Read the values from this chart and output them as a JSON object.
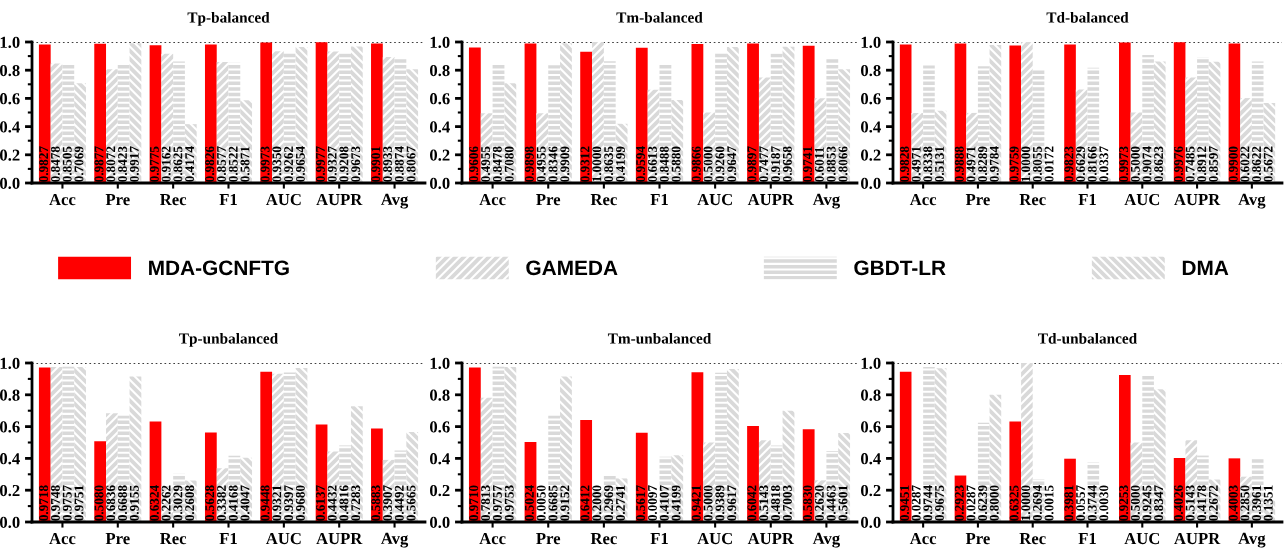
{
  "chart_data": [
    {
      "type": "bar",
      "title": "Tp-balanced",
      "categories": [
        "Acc",
        "Pre",
        "Rec",
        "F1",
        "AUC",
        "AUPR",
        "Avg"
      ],
      "ylim": [
        0,
        1.0
      ],
      "yticks": [
        {
          "value": 0,
          "label": "0.0"
        },
        {
          "value": 0.2,
          "label": "0.2"
        },
        {
          "value": 0.4,
          "label": "0.4"
        },
        {
          "value": 0.6,
          "label": "0.6"
        },
        {
          "value": 0.8,
          "label": "0.8"
        },
        {
          "value": 1.0,
          "label": "1.0"
        }
      ],
      "grid": false,
      "legend": "bottom",
      "ref_lines": [
        {
          "axis": "y",
          "value": 1.0,
          "line_style": "dotted",
          "color": "#000000"
        }
      ],
      "series": [
        {
          "name": "MDA-GCNFTG",
          "color": "#ff0000",
          "values": [
            0.9827,
            0.9877,
            0.9775,
            0.9826,
            0.9973,
            0.9977,
            0.9901
          ],
          "value_labels": [
            "0.9827",
            "0.9877",
            "0.9775",
            "0.9826",
            "0.9973",
            "0.9977",
            "0.9901"
          ]
        },
        {
          "name": "GAMEDA",
          "color": "#d9d9d9",
          "values": [
            0.8478,
            0.8072,
            0.9162,
            0.8577,
            0.935,
            0.9327,
            0.8933
          ],
          "value_labels": [
            "0.8478",
            "0.8072",
            "0.9162",
            "0.8577",
            "0.9350",
            "0.9327",
            "0.8933"
          ]
        },
        {
          "name": "GBDT-LR",
          "color": "#d9d9d9",
          "values": [
            0.8505,
            0.8423,
            0.8625,
            0.8522,
            0.9262,
            0.9208,
            0.8874
          ],
          "value_labels": [
            "0.8505",
            "0.8423",
            "0.8625",
            "0.8522",
            "0.9262",
            "0.9208",
            "0.8874"
          ]
        },
        {
          "name": "DMA",
          "color": "#d9d9d9",
          "values": [
            0.7069,
            0.9917,
            0.4174,
            0.5871,
            0.9654,
            0.9673,
            0.8067
          ],
          "value_labels": [
            "0.7069",
            "0.9917",
            "0.4174",
            "0.5871",
            "0.9654",
            "0.9673",
            "0.8067"
          ]
        }
      ]
    },
    {
      "type": "bar",
      "title": "Tm-balanced",
      "categories": [
        "Acc",
        "Pre",
        "Rec",
        "F1",
        "AUC",
        "AUPR",
        "Avg"
      ],
      "ylim": [
        0,
        1.0
      ],
      "yticks": [
        {
          "value": 0,
          "label": "0.0"
        },
        {
          "value": 0.2,
          "label": "0.2"
        },
        {
          "value": 0.4,
          "label": "0.4"
        },
        {
          "value": 0.6,
          "label": "0.6"
        },
        {
          "value": 0.8,
          "label": "0.8"
        },
        {
          "value": 1.0,
          "label": "1.0"
        }
      ],
      "grid": false,
      "ref_lines": [
        {
          "axis": "y",
          "value": 1.0,
          "line_style": "dotted",
          "color": "#000000"
        }
      ],
      "series": [
        {
          "color": "#ff0000",
          "values": [
            0.9606,
            0.9898,
            0.9312,
            0.9594,
            0.9866,
            0.9897,
            0.9741
          ],
          "value_labels": [
            "0.9606",
            "0.9898",
            "0.9312",
            "0.9594",
            "0.9866",
            "0.9897",
            "0.9741"
          ]
        },
        {
          "color": "#d9d9d9",
          "values": [
            0.4955,
            0.4955,
            1.0,
            0.6613,
            0.5,
            0.7477,
            0.6011
          ],
          "value_labels": [
            "0.4955",
            "0.4955",
            "1.0000",
            "0.6613",
            "0.5000",
            "0.7477",
            "0.6011"
          ]
        },
        {
          "color": "#d9d9d9",
          "values": [
            0.8478,
            0.8346,
            0.8635,
            0.8488,
            0.926,
            0.9187,
            0.8853
          ],
          "value_labels": [
            "0.8478",
            "0.8346",
            "0.8635",
            "0.8488",
            "0.9260",
            "0.9187",
            "0.8853"
          ]
        },
        {
          "color": "#d9d9d9",
          "values": [
            0.708,
            0.9909,
            0.4199,
            0.588,
            0.9647,
            0.9658,
            0.8066
          ],
          "value_labels": [
            "0.7080",
            "0.9909",
            "0.4199",
            "0.5880",
            "0.9647",
            "0.9658",
            "0.8066"
          ]
        }
      ]
    },
    {
      "type": "bar",
      "title": "Td-balanced",
      "categories": [
        "Acc",
        "Pre",
        "Rec",
        "F1",
        "AUC",
        "AUPR",
        "Avg"
      ],
      "ylim": [
        0,
        1.0
      ],
      "yticks": [
        {
          "value": 0,
          "label": "0.0"
        },
        {
          "value": 0.2,
          "label": "0.2"
        },
        {
          "value": 0.4,
          "label": "0.4"
        },
        {
          "value": 0.6,
          "label": "0.6"
        },
        {
          "value": 0.8,
          "label": "0.8"
        },
        {
          "value": 1.0,
          "label": "1.0"
        }
      ],
      "grid": false,
      "ref_lines": [
        {
          "axis": "y",
          "value": 1.0,
          "line_style": "dotted",
          "color": "#000000"
        }
      ],
      "series": [
        {
          "color": "#ff0000",
          "values": [
            0.9828,
            0.9888,
            0.9759,
            0.9823,
            0.9973,
            0.9976,
            0.99
          ],
          "value_labels": [
            "0.9828",
            "0.9888",
            "0.9759",
            "0.9823",
            "0.9973",
            "0.9976",
            "0.9900"
          ]
        },
        {
          "color": "#d9d9d9",
          "values": [
            0.4971,
            0.4971,
            1.0,
            0.6629,
            0.5,
            0.7485,
            0.6022
          ],
          "value_labels": [
            "0.4971",
            "0.4971",
            "1.0000",
            "0.6629",
            "0.5000",
            "0.7485",
            "0.6022"
          ]
        },
        {
          "color": "#d9d9d9",
          "values": [
            0.8338,
            0.8289,
            0.8055,
            0.8166,
            0.9074,
            0.8912,
            0.8622
          ],
          "value_labels": [
            "0.8338",
            "0.8289",
            "0.8055",
            "0.8166",
            "0.9074",
            "0.8912",
            "0.8622"
          ]
        },
        {
          "color": "#d9d9d9",
          "values": [
            0.5131,
            0.9784,
            0.0172,
            0.0337,
            0.8623,
            0.8597,
            0.5672
          ],
          "value_labels": [
            "0.5131",
            "0.9784",
            "0.0172",
            "0.0337",
            "0.8623",
            "0.8597",
            "0.5672"
          ]
        }
      ]
    },
    {
      "type": "bar",
      "title": "Tp-unbalanced",
      "categories": [
        "Acc",
        "Pre",
        "Rec",
        "F1",
        "AUC",
        "AUPR",
        "Avg"
      ],
      "ylim": [
        0,
        1.0
      ],
      "yticks": [
        {
          "value": 0,
          "label": "0.0"
        },
        {
          "value": 0.2,
          "label": "0.2"
        },
        {
          "value": 0.4,
          "label": "0.4"
        },
        {
          "value": 0.6,
          "label": "0.6"
        },
        {
          "value": 0.8,
          "label": "0.8"
        },
        {
          "value": 1.0,
          "label": "1.0"
        }
      ],
      "grid": false,
      "ref_lines": [
        {
          "axis": "y",
          "value": 1.0,
          "line_style": "dotted",
          "color": "#000000"
        }
      ],
      "series": [
        {
          "color": "#ff0000",
          "values": [
            0.9718,
            0.508,
            0.6324,
            0.5628,
            0.9448,
            0.6137,
            0.5883
          ],
          "value_labels": [
            "0.9718",
            "0.5080",
            "0.6324",
            "0.5628",
            "0.9448",
            "0.6137",
            "0.5883"
          ]
        },
        {
          "color": "#d9d9d9",
          "values": [
            0.9748,
            0.6836,
            0.2262,
            0.3382,
            0.9321,
            0.4432,
            0.3907
          ],
          "value_labels": [
            "0.9748",
            "0.6836",
            "0.2262",
            "0.3382",
            "0.9321",
            "0.4432",
            "0.3907"
          ]
        },
        {
          "color": "#d9d9d9",
          "values": [
            0.9757,
            0.6688,
            0.3029,
            0.4168,
            0.9397,
            0.4816,
            0.4492
          ],
          "value_labels": [
            "0.9757",
            "0.6688",
            "0.3029",
            "0.4168",
            "0.9397",
            "0.4816",
            "0.4492"
          ]
        },
        {
          "color": "#d9d9d9",
          "values": [
            0.9751,
            0.9155,
            0.2608,
            0.4047,
            0.968,
            0.7283,
            0.5665
          ],
          "value_labels": [
            "0.9751",
            "0.9155",
            "0.2608",
            "0.4047",
            "0.9680",
            "0.7283",
            "0.5665"
          ]
        }
      ]
    },
    {
      "type": "bar",
      "title": "Tm-unbalanced",
      "categories": [
        "Acc",
        "Pre",
        "Rec",
        "F1",
        "AUC",
        "AUPR",
        "Avg"
      ],
      "ylim": [
        0,
        1.0
      ],
      "yticks": [
        {
          "value": 0,
          "label": "0.0"
        },
        {
          "value": 0.2,
          "label": "0.2"
        },
        {
          "value": 0.4,
          "label": "0.4"
        },
        {
          "value": 0.6,
          "label": "0.6"
        },
        {
          "value": 0.8,
          "label": "0.8"
        },
        {
          "value": 1.0,
          "label": "1.0"
        }
      ],
      "grid": false,
      "ref_lines": [
        {
          "axis": "y",
          "value": 1.0,
          "line_style": "dotted",
          "color": "#000000"
        }
      ],
      "series": [
        {
          "color": "#ff0000",
          "values": [
            0.971,
            0.5024,
            0.6412,
            0.5617,
            0.9421,
            0.6042,
            0.583
          ],
          "value_labels": [
            "0.9710",
            "0.5024",
            "0.6412",
            "0.5617",
            "0.9421",
            "0.6042",
            "0.5830"
          ]
        },
        {
          "color": "#d9d9d9",
          "values": [
            0.7813,
            0.005,
            0.2,
            0.0097,
            0.5,
            0.5143,
            0.262
          ],
          "value_labels": [
            "0.7813",
            "0.0050",
            "0.2000",
            "0.0097",
            "0.5000",
            "0.5143",
            "0.2620"
          ]
        },
        {
          "color": "#d9d9d9",
          "values": [
            0.9757,
            0.6685,
            0.2969,
            0.4107,
            0.9389,
            0.4818,
            0.4463
          ],
          "value_labels": [
            "0.9757",
            "0.6685",
            "0.2969",
            "0.4107",
            "0.9389",
            "0.4818",
            "0.4463"
          ]
        },
        {
          "color": "#d9d9d9",
          "values": [
            0.9753,
            0.9152,
            0.2741,
            0.4199,
            0.9617,
            0.7003,
            0.5601
          ],
          "value_labels": [
            "0.9753",
            "0.9152",
            "0.2741",
            "0.4199",
            "0.9617",
            "0.7003",
            "0.5601"
          ]
        }
      ]
    },
    {
      "type": "bar",
      "title": "Td-unbalanced",
      "categories": [
        "Acc",
        "Pre",
        "Rec",
        "F1",
        "AUC",
        "AUPR",
        "Avg"
      ],
      "ylim": [
        0,
        1.0
      ],
      "yticks": [
        {
          "value": 0,
          "label": "0.0"
        },
        {
          "value": 0.2,
          "label": "0.2"
        },
        {
          "value": 0.4,
          "label": "0.4"
        },
        {
          "value": 0.6,
          "label": "0.6"
        },
        {
          "value": 0.8,
          "label": "0.8"
        },
        {
          "value": 1.0,
          "label": "1.0"
        }
      ],
      "grid": false,
      "ref_lines": [
        {
          "axis": "y",
          "value": 1.0,
          "line_style": "dotted",
          "color": "#000000"
        }
      ],
      "series": [
        {
          "color": "#ff0000",
          "values": [
            0.9451,
            0.2923,
            0.6325,
            0.3981,
            0.9253,
            0.4026,
            0.4003
          ],
          "value_labels": [
            "0.9451",
            "0.2923",
            "0.6325",
            "0.3981",
            "0.9253",
            "0.4026",
            "0.4003"
          ]
        },
        {
          "color": "#d9d9d9",
          "values": [
            0.0287,
            0.0287,
            1.0,
            0.0557,
            0.5,
            0.5143,
            0.285
          ],
          "value_labels": [
            "0.0287",
            "0.0287",
            "1.0000",
            "0.0557",
            "0.5000",
            "0.5143",
            "0.2850"
          ]
        },
        {
          "color": "#d9d9d9",
          "values": [
            0.9744,
            0.6239,
            0.2694,
            0.3744,
            0.9245,
            0.4178,
            0.3961
          ],
          "value_labels": [
            "0.9744",
            "0.6239",
            "0.2694",
            "0.3744",
            "0.9245",
            "0.4178",
            "0.3961"
          ]
        },
        {
          "color": "#d9d9d9",
          "values": [
            0.9675,
            0.8,
            0.0015,
            0.003,
            0.8347,
            0.2672,
            0.1351
          ],
          "value_labels": [
            "0.9675",
            "0.8000",
            "0.0015",
            "0.0030",
            "0.8347",
            "0.2672",
            "0.1351"
          ]
        }
      ]
    }
  ]
}
